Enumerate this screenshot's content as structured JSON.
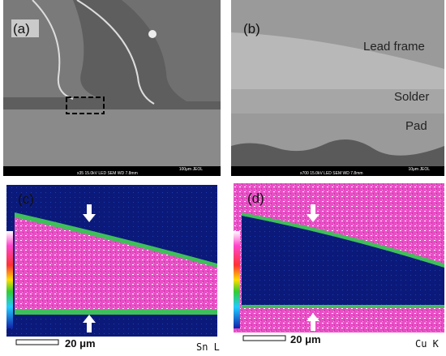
{
  "panels": [
    {
      "label": "(a)",
      "info": {
        "scale": "100μm JEOL",
        "settings": "x35     15.0kV LED     SEM     WD 7.8mm"
      }
    },
    {
      "label": "(b)",
      "regions": [
        "Lead frame",
        "Solder",
        "Pad"
      ],
      "info": {
        "scale": "10μm JEOL",
        "settings": "x700     15.0kV LED     SEM     WD 7.8mm"
      }
    },
    {
      "label": "(c)",
      "scale": "20 μm",
      "element": "Sn L"
    },
    {
      "label": "(d)",
      "scale": "20 μm",
      "element": "Cu K"
    }
  ]
}
